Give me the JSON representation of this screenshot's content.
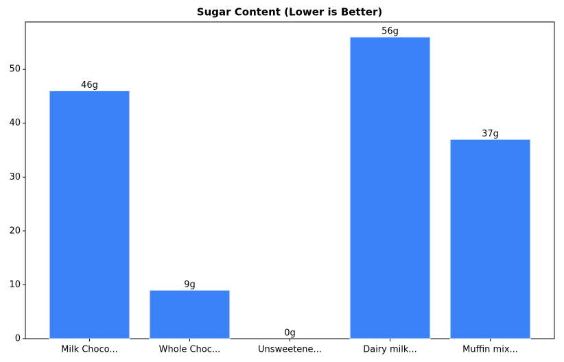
{
  "chart_data": {
    "type": "bar",
    "title": "Sugar Content (Lower is Better)",
    "categories": [
      "Milk Choco...",
      "Whole Choc...",
      "Unsweetene...",
      "Dairy milk...",
      "Muffin mix..."
    ],
    "values": [
      46,
      9,
      0,
      56,
      37
    ],
    "value_labels": [
      "46g",
      "9g",
      "0g",
      "56g",
      "37g"
    ],
    "color": "#3b82f6",
    "ylim": [
      0,
      58.8
    ],
    "yticks": [
      0,
      10,
      20,
      30,
      40,
      50
    ],
    "grid": false
  }
}
